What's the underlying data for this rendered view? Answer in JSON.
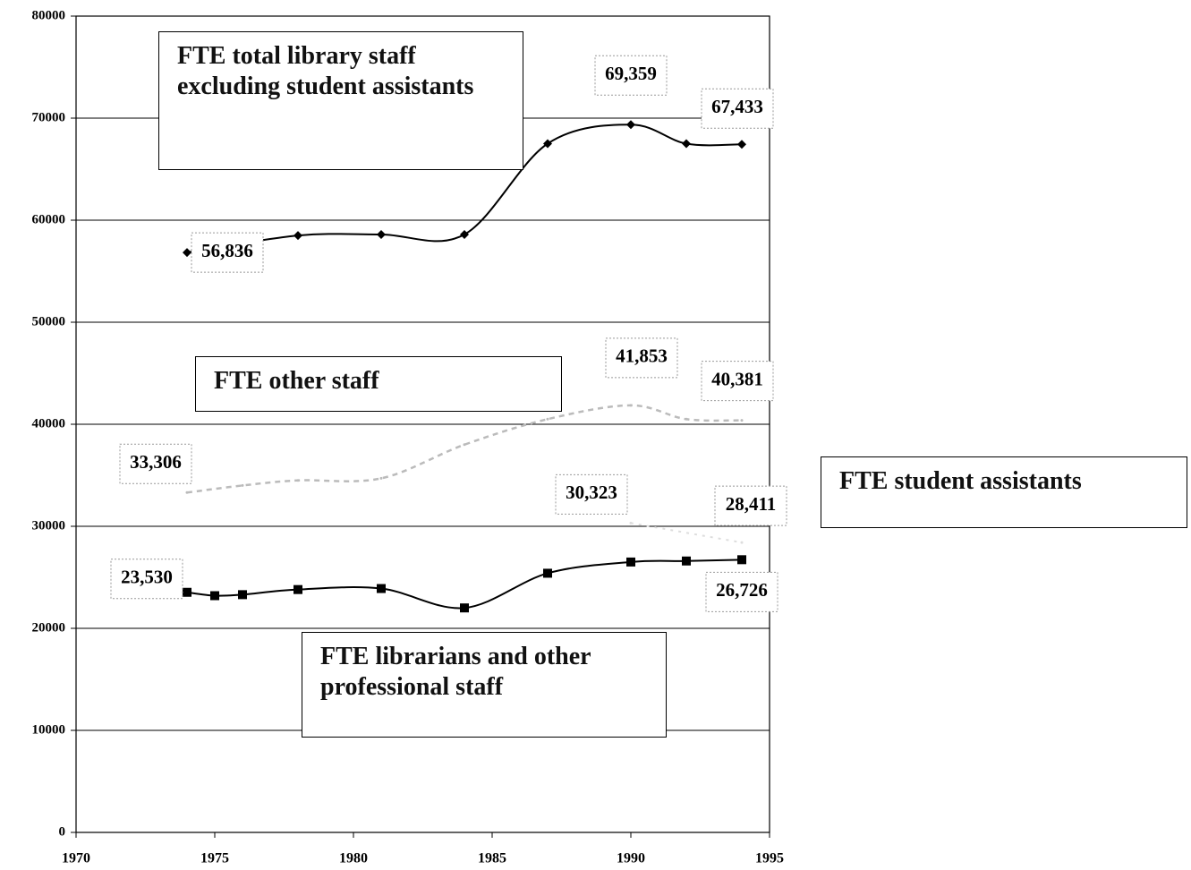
{
  "chart_data": {
    "type": "line",
    "xlim": [
      1970,
      1995
    ],
    "xticks": [
      1970,
      1975,
      1980,
      1985,
      1990,
      1995
    ],
    "ylim": [
      0,
      80000
    ],
    "yticks": [
      0,
      10000,
      20000,
      30000,
      40000,
      50000,
      60000,
      70000,
      80000
    ],
    "grid": true,
    "series": [
      {
        "name": "FTE total library staff excluding student assistants",
        "color": "#000000",
        "marker": "diamond",
        "x": [
          1974,
          1978,
          1981,
          1984,
          1987,
          1990,
          1992,
          1994
        ],
        "values": [
          56836,
          58500,
          58600,
          58600,
          67500,
          69359,
          67500,
          67433
        ],
        "value_labels": [
          "56,836",
          null,
          null,
          null,
          null,
          "69,359",
          null,
          "67,433"
        ]
      },
      {
        "name": "FTE other staff",
        "color": "#bbbbbb",
        "marker": "none",
        "x": [
          1974,
          1976,
          1978,
          1981,
          1984,
          1987,
          1990,
          1992,
          1994
        ],
        "values": [
          33306,
          34000,
          34500,
          34700,
          38000,
          40500,
          41853,
          40500,
          40381
        ],
        "value_labels": [
          "33,306",
          null,
          null,
          null,
          null,
          null,
          "41,853",
          null,
          "40,381"
        ]
      },
      {
        "name": "FTE student assistants",
        "color": "#dddddd",
        "marker": "none",
        "x": [
          1990,
          1994
        ],
        "values": [
          30323,
          28411
        ],
        "value_labels": [
          "30,323",
          "28,411"
        ]
      },
      {
        "name": "FTE librarians and other professional staff",
        "color": "#000000",
        "marker": "square",
        "x": [
          1974,
          1975,
          1976,
          1978,
          1981,
          1984,
          1987,
          1990,
          1992,
          1994
        ],
        "values": [
          23530,
          23200,
          23300,
          23800,
          23900,
          22000,
          25400,
          26500,
          26600,
          26726
        ],
        "value_labels": [
          "23,530",
          null,
          null,
          null,
          null,
          null,
          null,
          null,
          null,
          "26,726"
        ]
      }
    ]
  }
}
